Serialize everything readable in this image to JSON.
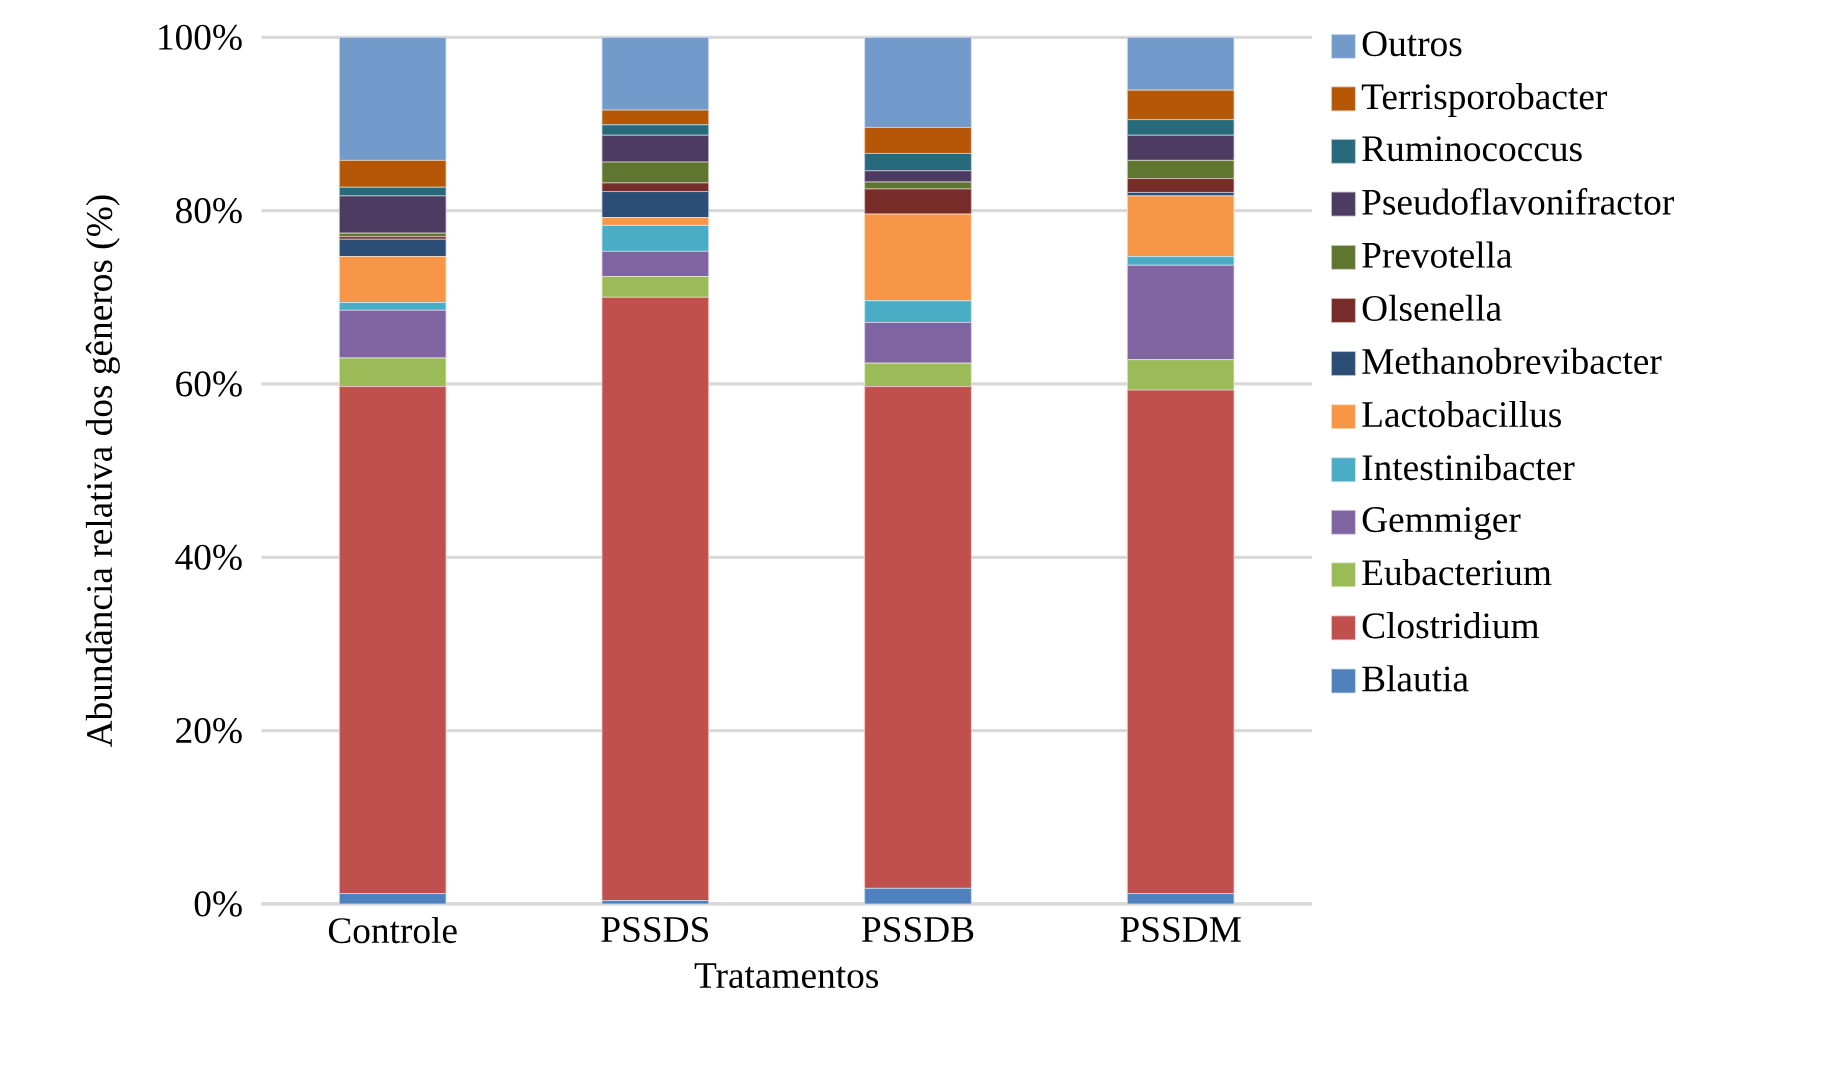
{
  "chart_data": {
    "type": "bar",
    "stacked": true,
    "xlabel": "Tratamentos",
    "ylabel": "Abundância relativa dos  gêneros (%)",
    "categories": [
      "Controle",
      "PSSDS",
      "PSSDB",
      "PSSDM"
    ],
    "ylim": [
      0,
      100
    ],
    "yticks": [
      {
        "value": 0,
        "label": "0%"
      },
      {
        "value": 20,
        "label": "20%"
      },
      {
        "value": 40,
        "label": "40%"
      },
      {
        "value": 60,
        "label": "60%"
      },
      {
        "value": 80,
        "label": "80%"
      },
      {
        "value": 100,
        "label": "100%"
      }
    ],
    "grid": "y",
    "legend": "right",
    "series": [
      {
        "name": "Blautia",
        "color": "#4f81bd",
        "values": [
          1.2,
          0.4,
          1.8,
          1.2
        ]
      },
      {
        "name": "Clostridium",
        "color": "#c0504d",
        "values": [
          58.5,
          69.6,
          57.9,
          58.1
        ]
      },
      {
        "name": "Eubacterium",
        "color": "#9bbb59",
        "values": [
          3.3,
          2.4,
          2.7,
          3.5
        ]
      },
      {
        "name": "Gemmiger",
        "color": "#8064a2",
        "values": [
          5.5,
          2.9,
          4.7,
          10.9
        ]
      },
      {
        "name": "Intestinibacter",
        "color": "#4bacc6",
        "values": [
          0.9,
          3.0,
          2.5,
          1.0
        ]
      },
      {
        "name": "Lactobacillus",
        "color": "#f79646",
        "values": [
          5.3,
          0.9,
          10.0,
          7.0
        ]
      },
      {
        "name": "Methanobrevibacter",
        "color": "#2c4d75",
        "values": [
          2.0,
          3.0,
          null,
          0.4
        ]
      },
      {
        "name": "Olsenella",
        "color": "#772c2a",
        "values": [
          0.3,
          1.0,
          2.9,
          1.6
        ]
      },
      {
        "name": "Prevotella",
        "color": "#5f7530",
        "values": [
          0.4,
          2.4,
          0.8,
          2.1
        ]
      },
      {
        "name": "Pseudoflavonifractor",
        "color": "#4d3b62",
        "values": [
          4.3,
          3.1,
          1.3,
          2.9
        ]
      },
      {
        "name": "Ruminococcus",
        "color": "#276a7c",
        "values": [
          1.0,
          1.2,
          2.0,
          1.8
        ]
      },
      {
        "name": "Terrisporobacter",
        "color": "#b65708",
        "values": [
          3.1,
          1.7,
          3.0,
          3.4
        ]
      },
      {
        "name": "Outros",
        "color": "#729aca",
        "values": [
          14.2,
          8.4,
          10.4,
          6.1
        ]
      }
    ]
  }
}
